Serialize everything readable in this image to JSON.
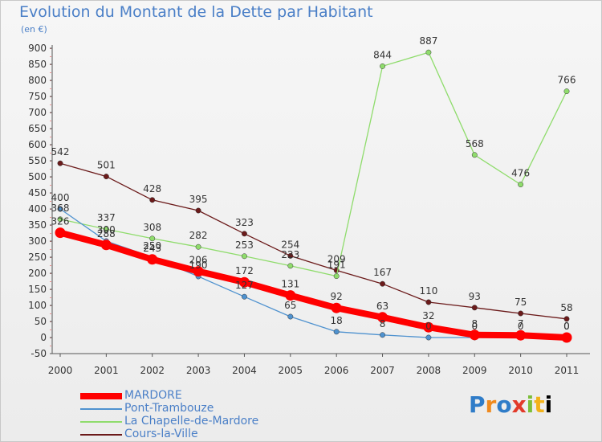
{
  "title": "Evolution du Montant de la Dette par Habitant",
  "subtitle": "(en €)",
  "logo_text": "Proxiti",
  "chart_data": {
    "type": "line",
    "title": "Evolution du Montant de la Dette par Habitant",
    "subtitle": "(en €)",
    "xlabel": "",
    "ylabel": "",
    "x": [
      "2000",
      "2001",
      "2002",
      "2003",
      "2004",
      "2005",
      "2006",
      "2007",
      "2008",
      "2009",
      "2010",
      "2011"
    ],
    "ylim": [
      -50,
      900
    ],
    "yticks": [
      -50,
      0,
      50,
      100,
      150,
      200,
      250,
      300,
      350,
      400,
      450,
      500,
      550,
      600,
      650,
      700,
      750,
      800,
      850,
      900
    ],
    "grid": false,
    "legend_position": "bottom-left",
    "series": [
      {
        "name": "Cours-la-Ville",
        "color": "#6b1a1a",
        "width": 1.3,
        "values": [
          542,
          501,
          428,
          395,
          323,
          254,
          209,
          167,
          110,
          93,
          75,
          58
        ],
        "labels": [
          "542",
          "501",
          "428",
          "395",
          "323",
          "254",
          "209",
          "167",
          "110",
          "93",
          "75",
          "58"
        ]
      },
      {
        "name": "La Chapelle-de-Mardore",
        "color": "#8fdc6c",
        "width": 1.3,
        "values": [
          368,
          337,
          308,
          282,
          253,
          223,
          191,
          844,
          887,
          568,
          476,
          766
        ],
        "labels": [
          "368",
          "337",
          "308",
          "282",
          "253",
          "223",
          "191",
          "844",
          "887",
          "568",
          "476",
          "766"
        ]
      },
      {
        "name": "Pont-Trambouze",
        "color": "#4f92cf",
        "width": 1.3,
        "values": [
          400,
          300,
          250,
          190,
          127,
          65,
          18,
          8,
          0,
          0,
          0,
          0
        ],
        "labels": [
          "400",
          "300",
          "250",
          "190",
          "127",
          "65",
          "18",
          "8",
          "0",
          "0",
          "0",
          "0"
        ]
      },
      {
        "name": "MARDORE",
        "color": "#ff0000",
        "width": 8,
        "values": [
          326,
          288,
          243,
          206,
          172,
          131,
          92,
          63,
          32,
          8,
          7,
          0
        ],
        "labels": [
          "326",
          "288",
          "243",
          "206",
          "172",
          "131",
          "92",
          "63",
          "32",
          "8",
          "7",
          "0"
        ]
      }
    ]
  }
}
